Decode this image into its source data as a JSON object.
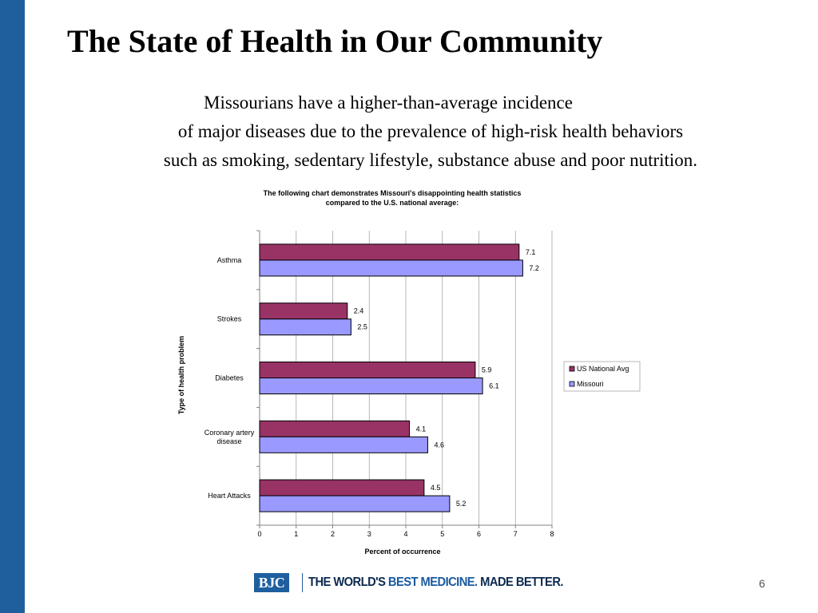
{
  "slide": {
    "title": "The State of Health in Our Community",
    "subtitle_lines": [
      "Missourians have a higher-than-average incidence",
      "of major diseases due to the prevalence of high-risk health behaviors",
      "such as smoking, sedentary lifestyle, substance abuse and poor nutrition."
    ],
    "page_number": "6"
  },
  "footer": {
    "logo_text": "BJC",
    "tagline_parts": [
      "THE WORLD'S ",
      "BEST MEDICINE. ",
      "MADE ",
      "BETTER."
    ]
  },
  "colors": {
    "side_bar": "#1f5f9e",
    "logo_blue": "#1f5f9e",
    "us_national_avg": "#993366",
    "missouri": "#9999ff",
    "grid": "#a6a6a6"
  },
  "chart_data": {
    "type": "bar",
    "orientation": "horizontal",
    "title_lines": [
      "The following chart demonstrates Missouri's disappointing health statistics",
      "compared to the U.S. national average:"
    ],
    "xlabel": "Percent of occurrence",
    "ylabel": "Type of health problem",
    "xlim": [
      0,
      8
    ],
    "xticks": [
      "0",
      "1",
      "2",
      "3",
      "4",
      "5",
      "6",
      "7",
      "8"
    ],
    "grid": true,
    "legend_position": "right",
    "categories": [
      "Asthma",
      "Strokes",
      "Diabetes",
      "Coronary artery disease",
      "Heart Attacks"
    ],
    "category_label_lines": [
      [
        "Asthma"
      ],
      [
        "Strokes"
      ],
      [
        "Diabetes"
      ],
      [
        "Coronary artery",
        "disease"
      ],
      [
        "Heart Attacks"
      ]
    ],
    "series": [
      {
        "name": "US National Avg",
        "values": [
          7.1,
          2.4,
          5.9,
          4.1,
          4.5
        ],
        "labels": [
          "7.1",
          "2.4",
          "5.9",
          "4.1",
          "4.5"
        ]
      },
      {
        "name": "Missouri",
        "values": [
          7.2,
          2.5,
          6.1,
          4.6,
          5.2
        ],
        "labels": [
          "7.2",
          "2.5",
          "6.1",
          "4.6",
          "5.2"
        ]
      }
    ]
  }
}
